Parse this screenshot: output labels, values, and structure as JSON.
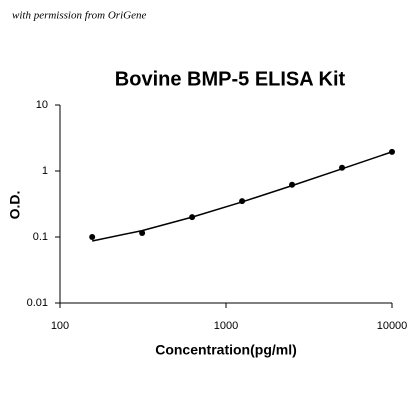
{
  "chart_data": {
    "type": "scatter",
    "title": "Bovine BMP-5 ELISA Kit",
    "annotation": "with permission from OriGene",
    "x_label": "Concentration(pg/ml)",
    "y_label": "O.D.",
    "x": [
      156.25,
      312.5,
      625,
      1250,
      2500,
      5000,
      10000
    ],
    "series": [
      {
        "color": "#000000",
        "style": "points",
        "values": [
          0.1,
          0.115,
          0.2,
          0.35,
          0.62,
          1.12,
          1.95
        ]
      },
      {
        "color": "#000000",
        "style": "line",
        "values": [
          0.087,
          0.125,
          0.2,
          0.34,
          0.6,
          1.08,
          1.95
        ]
      }
    ],
    "xlog": true,
    "ylog": true,
    "xlim": [
      100,
      10000
    ],
    "ylim": [
      0.01,
      10
    ],
    "xticks": [
      100,
      1000,
      10000
    ],
    "yticks": [
      0.01,
      0.1,
      1,
      10
    ]
  }
}
